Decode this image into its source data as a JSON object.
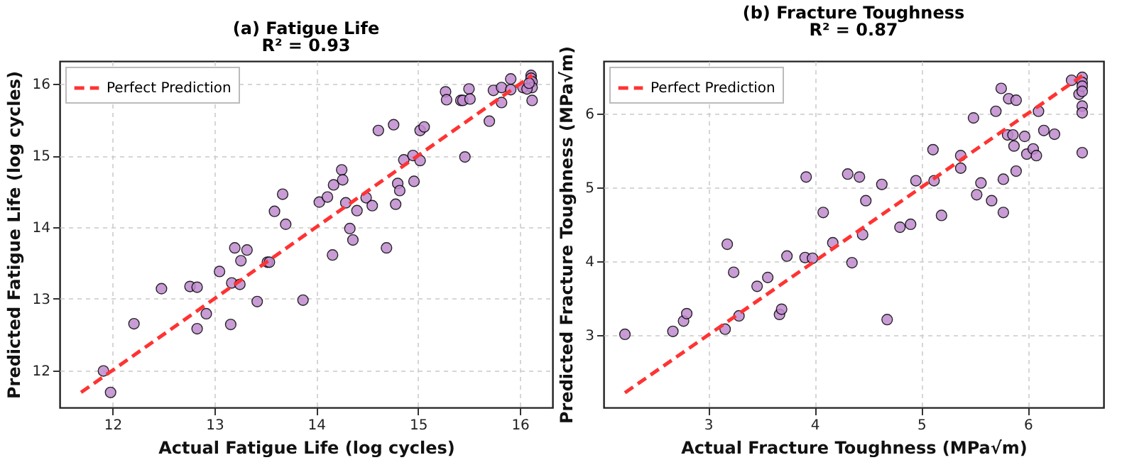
{
  "chart_data": [
    {
      "type": "scatter",
      "title": "(a) Fatigue Life",
      "subtitle": "R² = 0.93",
      "xlabel": "Actual Fatigue Life (log cycles)",
      "ylabel": "Predicted Fatigue Life (log cycles)",
      "xlim": [
        11.48,
        16.32
      ],
      "ylim": [
        11.48,
        16.32
      ],
      "xticks": [
        12,
        13,
        14,
        15,
        16
      ],
      "yticks": [
        12,
        13,
        14,
        15,
        16
      ],
      "grid": true,
      "legend": "top left",
      "series": [
        {
          "color": "#c08bd0",
          "marker": "circle",
          "x": [
            11.91,
            11.98,
            12.21,
            12.48,
            12.76,
            12.83,
            12.83,
            12.92,
            13.05,
            13.16,
            13.17,
            13.25,
            13.2,
            13.26,
            13.32,
            13.42,
            13.52,
            13.54,
            13.59,
            13.67,
            13.7,
            13.87,
            14.03,
            14.11,
            14.16,
            14.17,
            14.25,
            14.26,
            14.29,
            14.33,
            14.36,
            14.4,
            14.49,
            14.55,
            14.61,
            14.69,
            14.76,
            14.78,
            14.8,
            14.82,
            14.86,
            14.95,
            14.96,
            15.02,
            15.02,
            15.06,
            15.27,
            15.28,
            15.42,
            15.44,
            15.46,
            15.5,
            15.51,
            15.7,
            15.74,
            15.82,
            15.82,
            15.91,
            15.91,
            16.03,
            16.11,
            16.11,
            16.12,
            16.12,
            16.12,
            16.07,
            16.09
          ],
          "values": [
            11.99,
            11.69,
            12.65,
            13.14,
            13.17,
            13.16,
            12.58,
            12.79,
            13.38,
            12.64,
            13.22,
            13.2,
            13.71,
            13.53,
            13.68,
            12.96,
            13.51,
            13.51,
            14.22,
            14.46,
            14.04,
            12.98,
            14.35,
            14.42,
            13.61,
            14.59,
            14.8,
            14.66,
            14.34,
            13.98,
            13.82,
            14.23,
            14.41,
            14.3,
            15.35,
            13.71,
            15.43,
            14.32,
            14.61,
            14.51,
            14.94,
            15.0,
            14.64,
            14.93,
            15.35,
            15.4,
            15.89,
            15.78,
            15.77,
            15.77,
            14.98,
            15.93,
            15.79,
            15.48,
            15.91,
            15.95,
            15.74,
            15.92,
            16.07,
            15.95,
            16.12,
            16.08,
            16.03,
            15.95,
            15.77,
            15.93,
            16.01
          ]
        },
        {
          "type": "line",
          "name": "Perfect Prediction",
          "color": "#ff3333",
          "line_style": "dashed",
          "marker": "none",
          "x": [
            11.69,
            16.12
          ],
          "values": [
            11.69,
            16.12
          ]
        }
      ]
    },
    {
      "type": "scatter",
      "title": "(b) Fracture Toughness",
      "subtitle": "R² = 0.87",
      "xlabel": "Actual Fracture Toughness (MPa√m)",
      "ylabel": "Predicted Fracture Toughness (MPa√m)",
      "xlim": [
        2.02,
        6.71
      ],
      "ylim": [
        2.02,
        6.71
      ],
      "xticks": [
        3,
        4,
        5,
        6
      ],
      "yticks": [
        3,
        4,
        5,
        6
      ],
      "grid": true,
      "legend": "top left",
      "series": [
        {
          "color": "#c08bd0",
          "marker": "circle",
          "x": [
            2.22,
            2.67,
            2.77,
            2.8,
            3.16,
            3.18,
            3.24,
            3.29,
            3.46,
            3.56,
            3.67,
            3.69,
            3.74,
            3.91,
            3.92,
            3.98,
            4.08,
            4.17,
            4.31,
            4.35,
            4.42,
            4.45,
            4.48,
            4.63,
            4.68,
            4.8,
            4.9,
            4.95,
            5.11,
            5.12,
            5.19,
            5.37,
            5.37,
            5.49,
            5.52,
            5.56,
            5.66,
            5.7,
            5.75,
            5.77,
            5.77,
            5.81,
            5.82,
            5.86,
            5.87,
            5.89,
            5.89,
            5.97,
            5.99,
            6.05,
            6.08,
            6.1,
            6.15,
            6.25,
            6.41,
            6.48,
            6.51,
            6.51,
            6.51,
            6.51,
            6.51,
            6.51,
            6.51
          ],
          "values": [
            3.01,
            3.05,
            3.19,
            3.29,
            3.08,
            4.23,
            3.85,
            3.26,
            3.66,
            3.78,
            3.28,
            3.35,
            4.07,
            4.05,
            5.14,
            4.04,
            4.66,
            4.25,
            5.18,
            3.98,
            5.14,
            4.36,
            4.82,
            5.04,
            3.21,
            4.46,
            4.5,
            5.09,
            5.51,
            5.09,
            4.62,
            5.43,
            5.26,
            5.94,
            4.9,
            5.06,
            4.82,
            6.03,
            6.34,
            5.11,
            4.66,
            5.71,
            6.2,
            5.71,
            5.56,
            6.18,
            5.22,
            5.69,
            5.45,
            5.52,
            5.43,
            6.03,
            5.77,
            5.72,
            6.45,
            6.26,
            6.49,
            6.42,
            6.37,
            6.3,
            6.1,
            6.01,
            5.47
          ]
        },
        {
          "type": "line",
          "name": "Perfect Prediction",
          "color": "#ff3333",
          "line_style": "dashed",
          "marker": "none",
          "x": [
            2.22,
            6.51
          ],
          "values": [
            2.22,
            6.51
          ]
        }
      ]
    }
  ]
}
